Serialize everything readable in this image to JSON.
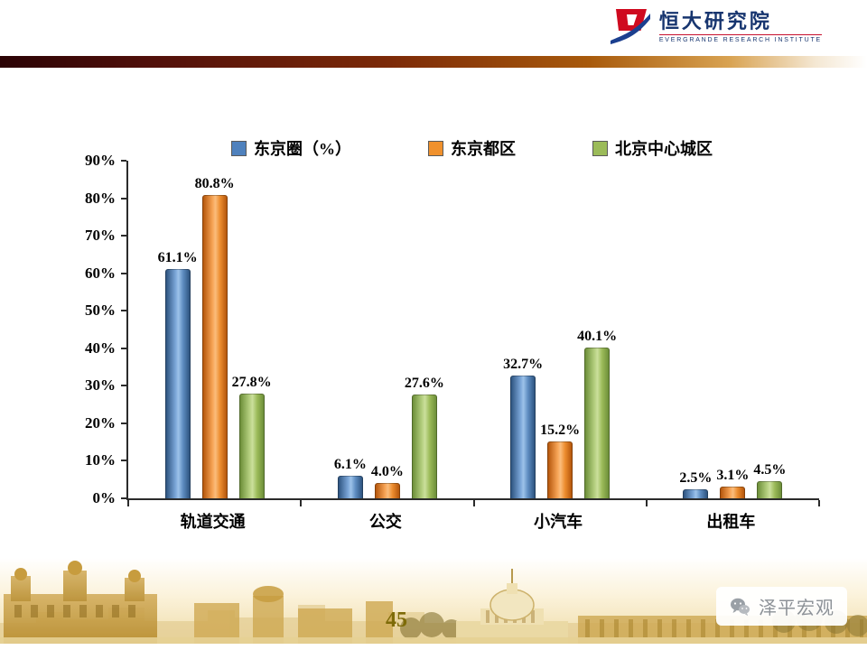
{
  "header": {
    "logo_title": "恒大研究院",
    "logo_subtitle": "EVERGRANDE RESEARCH INSTITUTE"
  },
  "chart_data": {
    "type": "bar",
    "categories": [
      "轨道交通",
      "公交",
      "小汽车",
      "出租车"
    ],
    "series": [
      {
        "name": "东京圈（%）",
        "color": "#4f81bd",
        "values": [
          61.1,
          6.1,
          32.7,
          2.5
        ]
      },
      {
        "name": "东京都区",
        "color": "#f0912d",
        "values": [
          80.8,
          4.0,
          15.2,
          3.1
        ]
      },
      {
        "name": "北京中心城区",
        "color": "#9bbb59",
        "values": [
          27.8,
          27.6,
          40.1,
          4.5
        ]
      }
    ],
    "ylim": [
      0,
      90
    ],
    "ytick_step": 10,
    "ytick_labels": [
      "0%",
      "10%",
      "20%",
      "30%",
      "40%",
      "50%",
      "60%",
      "70%",
      "80%",
      "90%"
    ],
    "value_label_suffix": "%",
    "legend_position": "top",
    "grid": false
  },
  "footer": {
    "page_number": "45",
    "watermark_label": "泽平宏观"
  },
  "icons": {
    "logo": "evergrande-logo-icon",
    "watermark": "wechat-icon"
  }
}
